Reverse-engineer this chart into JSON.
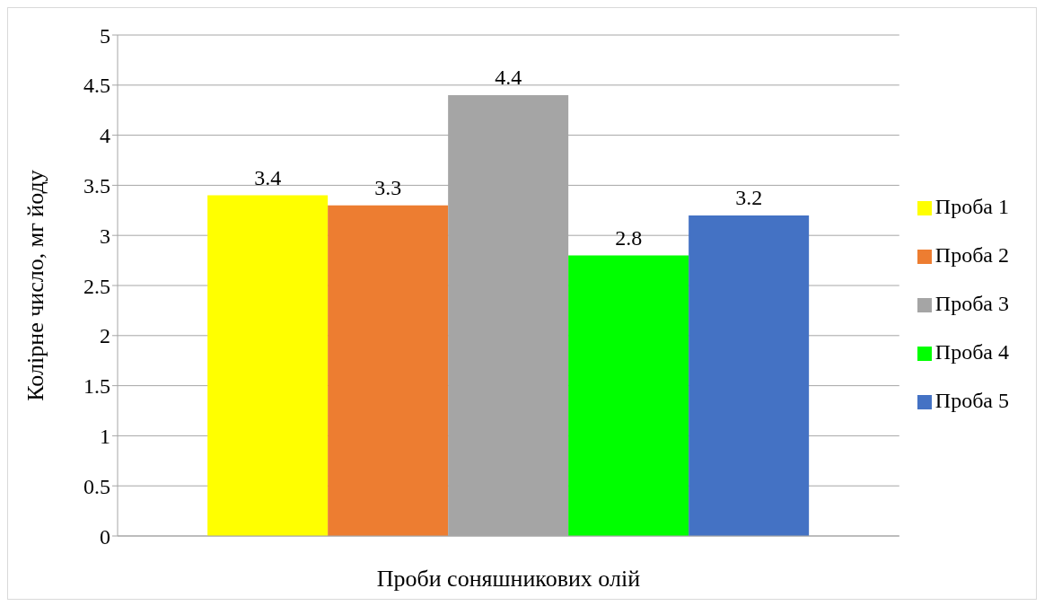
{
  "chart_data": {
    "type": "bar",
    "xlabel": "Проби соняшникових олій",
    "ylabel": "Колірне число, мг йоду",
    "categories": [
      null
    ],
    "series": [
      {
        "name": "Проба 1",
        "color": "#ffff00",
        "values": [
          3.4
        ]
      },
      {
        "name": "Проба 2",
        "color": "#ed7d31",
        "values": [
          3.3
        ]
      },
      {
        "name": "Проба 3",
        "color": "#a5a5a5",
        "values": [
          4.4
        ]
      },
      {
        "name": "Проба 4",
        "color": "#00ff00",
        "values": [
          2.8
        ]
      },
      {
        "name": "Проба 5",
        "color": "#4472c4",
        "values": [
          3.2
        ]
      }
    ],
    "ylim": [
      0,
      5
    ],
    "yticks": [
      0,
      0.5,
      1,
      1.5,
      2,
      2.5,
      3,
      3.5,
      4,
      4.5,
      5
    ],
    "grid": "y",
    "legend": "right",
    "data_labels": true
  }
}
